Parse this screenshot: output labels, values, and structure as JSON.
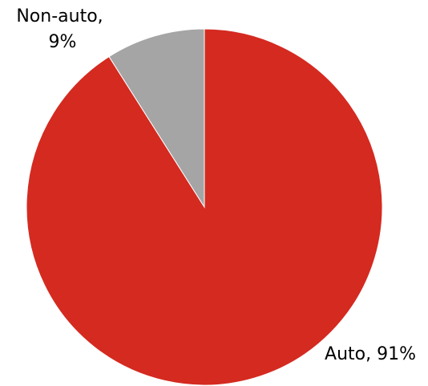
{
  "chart_data": {
    "type": "pie",
    "slices": [
      {
        "name": "Auto",
        "value": 91,
        "label_lines": [
          "Auto, 91%"
        ],
        "color": "#d42a20"
      },
      {
        "name": "Non-auto",
        "value": 9,
        "label_lines": [
          "Non-auto,",
          "9%"
        ],
        "color": "#a5a5a5"
      }
    ],
    "start": "12 o'clock",
    "direction": "clockwise"
  }
}
